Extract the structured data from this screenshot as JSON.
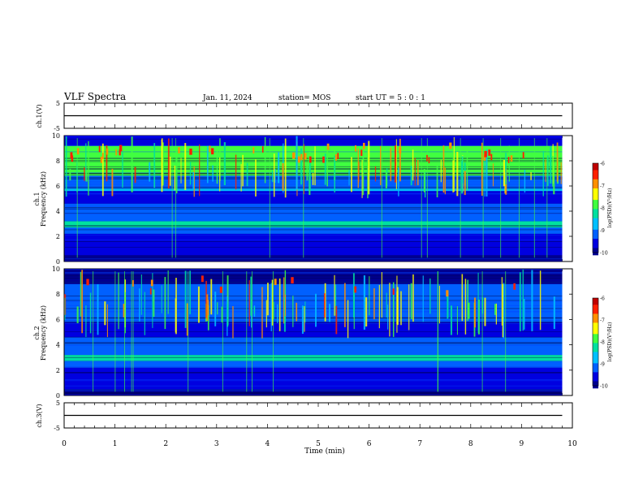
{
  "header": {
    "title": "VLF Spectra",
    "date": "Jan. 11, 2024",
    "station": "station= MOS",
    "start": "start  UT =  5 : 0  : 1"
  },
  "colorscale": {
    "label": "log(PSD)(V²/Hz)",
    "ticks": [
      "-6",
      "-7",
      "-8",
      "-9",
      "-10"
    ],
    "colors": [
      "#c00000",
      "#ff2000",
      "#ff9000",
      "#ffff00",
      "#40ff40",
      "#00e0a0",
      "#00c0ff",
      "#0060ff",
      "#0000e0",
      "#000090"
    ]
  },
  "chart_data": [
    {
      "type": "line",
      "panel": "ch1-waveform",
      "ylabel": "ch.1(V)",
      "yticks": [
        "5",
        "-5"
      ],
      "ylim": [
        -5,
        5
      ],
      "xlim": [
        0,
        10
      ],
      "series": [
        {
          "x": [
            0,
            9.8
          ],
          "y": [
            0,
            0
          ]
        }
      ]
    },
    {
      "type": "heatmap",
      "panel": "ch1-spectrogram",
      "ylabel": "ch.1 Frequency (kHz)",
      "yticks": [
        "10",
        "8",
        "6",
        "4",
        "2",
        "0"
      ],
      "ylim": [
        0,
        10
      ],
      "xlim": [
        0,
        10
      ],
      "data_end_min": 9.8,
      "zlim": [
        -10,
        -6
      ],
      "bands": [
        {
          "f": [
            0,
            0.5
          ],
          "z": -10
        },
        {
          "f": [
            0.5,
            2.2
          ],
          "z": -9.4
        },
        {
          "f": [
            2.2,
            2.7
          ],
          "z": -9.0
        },
        {
          "f": [
            2.7,
            3.2
          ],
          "z": -8.3
        },
        {
          "f": [
            3.2,
            4.6
          ],
          "z": -9.3
        },
        {
          "f": [
            4.6,
            5.6
          ],
          "z": -9.6
        },
        {
          "f": [
            5.6,
            5.8
          ],
          "z": -8.8
        },
        {
          "f": [
            5.8,
            6.8
          ],
          "z": -9.3
        },
        {
          "f": [
            6.8,
            9.2
          ],
          "z": -7.8
        },
        {
          "f": [
            9.2,
            10
          ],
          "z": -9.7
        }
      ]
    },
    {
      "type": "heatmap",
      "panel": "ch2-spectrogram",
      "ylabel": "ch.2 Frequency (kHz)",
      "yticks": [
        "10",
        "8",
        "6",
        "4",
        "2",
        "0"
      ],
      "ylim": [
        0,
        10
      ],
      "xlim": [
        0,
        10
      ],
      "data_end_min": 9.8,
      "zlim": [
        -10,
        -6
      ],
      "bands": [
        {
          "f": [
            0,
            0.5
          ],
          "z": -10
        },
        {
          "f": [
            0.5,
            2.2
          ],
          "z": -9.6
        },
        {
          "f": [
            2.2,
            2.7
          ],
          "z": -9.3
        },
        {
          "f": [
            2.7,
            3.2
          ],
          "z": -8.4
        },
        {
          "f": [
            3.2,
            4.6
          ],
          "z": -9.2
        },
        {
          "f": [
            4.6,
            5.8
          ],
          "z": -9.7
        },
        {
          "f": [
            5.8,
            8.8
          ],
          "z": -8.9
        },
        {
          "f": [
            8.8,
            10
          ],
          "z": -9.8
        }
      ]
    },
    {
      "type": "line",
      "panel": "ch3-waveform",
      "ylabel": "ch.3(V)",
      "yticks": [
        "5",
        "-5"
      ],
      "ylim": [
        -5,
        5
      ],
      "xlim": [
        0,
        10
      ],
      "series": [
        {
          "x": [
            0,
            9.8
          ],
          "y": [
            0,
            0
          ]
        }
      ]
    }
  ],
  "xaxis": {
    "label": "Time  (min)",
    "ticks": [
      "0",
      "1",
      "2",
      "3",
      "4",
      "5",
      "6",
      "7",
      "8",
      "9",
      "10"
    ]
  }
}
